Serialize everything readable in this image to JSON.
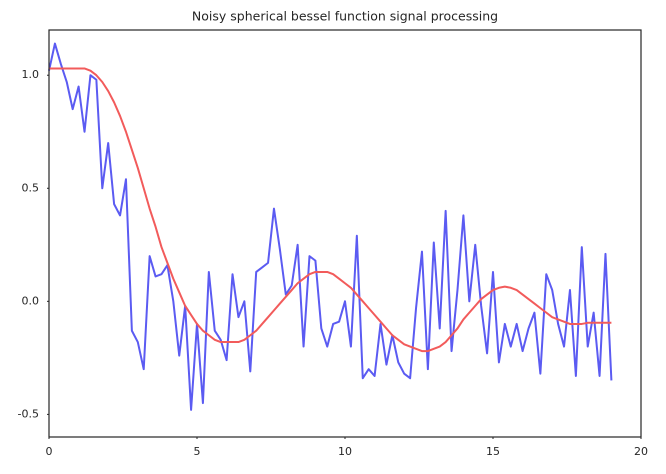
{
  "chart_data": {
    "type": "line",
    "title": "Noisy spherical bessel function signal processing",
    "x": [
      0,
      0.2,
      0.4,
      0.6,
      0.8,
      1,
      1.2,
      1.4,
      1.6,
      1.8,
      2,
      2.2,
      2.4,
      2.6,
      2.8,
      3,
      3.2,
      3.4,
      3.6,
      3.8,
      4,
      4.2,
      4.4,
      4.6,
      4.8,
      5,
      5.2,
      5.4,
      5.6,
      5.8,
      6,
      6.2,
      6.4,
      6.6,
      6.8,
      7,
      7.2,
      7.4,
      7.6,
      7.8,
      8,
      8.2,
      8.4,
      8.6,
      8.8,
      9,
      9.2,
      9.4,
      9.6,
      9.8,
      10,
      10.2,
      10.4,
      10.6,
      10.8,
      11,
      11.2,
      11.4,
      11.6,
      11.8,
      12,
      12.2,
      12.4,
      12.6,
      12.8,
      13,
      13.2,
      13.4,
      13.6,
      13.8,
      14,
      14.2,
      14.4,
      14.6,
      14.8,
      15,
      15.2,
      15.4,
      15.6,
      15.8,
      16,
      16.2,
      16.4,
      16.6,
      16.8,
      17,
      17.2,
      17.4,
      17.6,
      17.8,
      18,
      18.2,
      18.4,
      18.6,
      18.8,
      19
    ],
    "series": [
      {
        "color": "#5b5bf2",
        "values": [
          1.02,
          1.14,
          1.05,
          0.97,
          0.85,
          0.95,
          0.75,
          1.0,
          0.98,
          0.5,
          0.7,
          0.43,
          0.38,
          0.54,
          -0.13,
          -0.18,
          -0.3,
          0.2,
          0.11,
          0.12,
          0.16,
          0.0,
          -0.24,
          -0.02,
          -0.48,
          -0.1,
          -0.45,
          0.13,
          -0.13,
          -0.17,
          -0.26,
          0.12,
          -0.07,
          0.0,
          -0.31,
          0.13,
          0.15,
          0.17,
          0.41,
          0.23,
          0.03,
          0.07,
          0.25,
          -0.2,
          0.2,
          0.18,
          -0.12,
          -0.2,
          -0.1,
          -0.09,
          0.0,
          -0.2,
          0.29,
          -0.34,
          -0.3,
          -0.33,
          -0.1,
          -0.28,
          -0.15,
          -0.27,
          -0.32,
          -0.34,
          -0.03,
          0.22,
          -0.3,
          0.26,
          -0.12,
          0.4,
          -0.22,
          0.05,
          0.38,
          0.0,
          0.25,
          -0.02,
          -0.23,
          0.13,
          -0.27,
          -0.1,
          -0.2,
          -0.1,
          -0.22,
          -0.12,
          -0.05,
          -0.32,
          0.12,
          0.05,
          -0.1,
          -0.2,
          0.05,
          -0.33,
          0.24,
          -0.2,
          -0.05,
          -0.33,
          0.21,
          -0.35
        ]
      },
      {
        "color": "#f25b5b",
        "values": [
          1.03,
          1.03,
          1.03,
          1.03,
          1.03,
          1.03,
          1.03,
          1.02,
          1.0,
          0.97,
          0.93,
          0.88,
          0.82,
          0.75,
          0.67,
          0.59,
          0.5,
          0.41,
          0.33,
          0.24,
          0.17,
          0.1,
          0.04,
          -0.02,
          -0.06,
          -0.1,
          -0.13,
          -0.15,
          -0.17,
          -0.18,
          -0.18,
          -0.18,
          -0.18,
          -0.17,
          -0.15,
          -0.13,
          -0.1,
          -0.07,
          -0.04,
          -0.01,
          0.02,
          0.05,
          0.08,
          0.1,
          0.12,
          0.13,
          0.13,
          0.13,
          0.12,
          0.1,
          0.08,
          0.06,
          0.03,
          0.0,
          -0.03,
          -0.06,
          -0.09,
          -0.12,
          -0.15,
          -0.17,
          -0.19,
          -0.2,
          -0.21,
          -0.22,
          -0.22,
          -0.21,
          -0.2,
          -0.18,
          -0.15,
          -0.12,
          -0.08,
          -0.05,
          -0.02,
          0.01,
          0.03,
          0.05,
          0.06,
          0.065,
          0.06,
          0.05,
          0.03,
          0.01,
          -0.01,
          -0.03,
          -0.05,
          -0.07,
          -0.08,
          -0.09,
          -0.1,
          -0.1,
          -0.1,
          -0.095,
          -0.095,
          -0.095,
          -0.095,
          -0.095
        ]
      }
    ],
    "xlim": [
      0,
      20
    ],
    "xticks": [
      0,
      5,
      10,
      15,
      20
    ],
    "ylim": [
      -0.6,
      1.2
    ],
    "yticks": [
      -0.5,
      {
        "value": 0,
        "label": "0.0"
      },
      0.5,
      {
        "value": 1,
        "label": "1.0"
      }
    ],
    "grid": false
  }
}
